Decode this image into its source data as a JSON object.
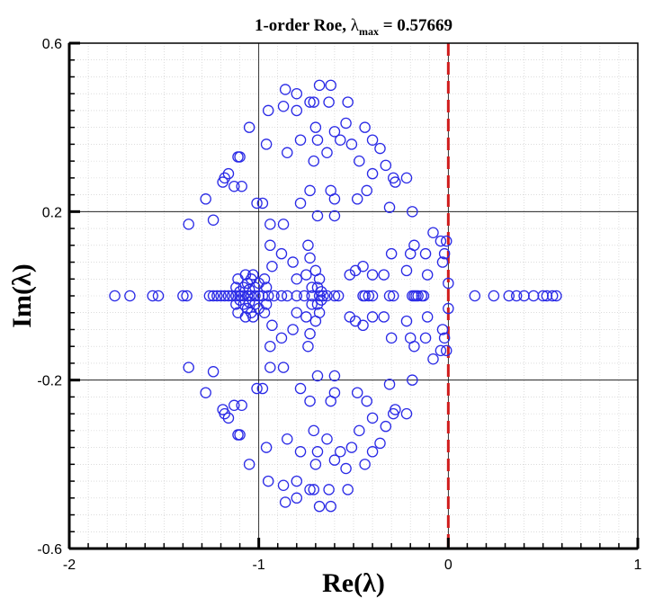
{
  "chart_data": {
    "type": "scatter",
    "title": {
      "prefix": "1-order Roe,  ",
      "symbol": "λ",
      "subscript": "max",
      "suffix": " = 0.57669"
    },
    "xlabel": "Re(λ)",
    "ylabel": "Im(λ)",
    "xlim": [
      -2,
      1
    ],
    "ylim": [
      -0.6,
      0.6
    ],
    "x_ticks": [
      {
        "value": -2,
        "label": "-2"
      },
      {
        "value": -1,
        "label": "-1"
      },
      {
        "value": 0,
        "label": "0"
      },
      {
        "value": 1,
        "label": "1"
      }
    ],
    "y_ticks": [
      {
        "value": -0.6,
        "label": "-0.6"
      },
      {
        "value": -0.2,
        "label": "-0.2"
      },
      {
        "value": 0.2,
        "label": "0.2"
      },
      {
        "value": 0.6,
        "label": "0.6"
      }
    ],
    "grid": true,
    "reference_line": {
      "x": 0,
      "color": "#d01c1c",
      "style": "dashed"
    },
    "marker": {
      "shape": "circle",
      "color": "#2a2ae6",
      "fill": "none"
    },
    "points": [
      [
        -1.76,
        0
      ],
      [
        -1.68,
        0
      ],
      [
        -1.56,
        0
      ],
      [
        -1.53,
        0
      ],
      [
        -1.4,
        0
      ],
      [
        -1.38,
        0
      ],
      [
        -1.26,
        0
      ],
      [
        -1.24,
        0
      ],
      [
        -1.22,
        0
      ],
      [
        -1.2,
        0
      ],
      [
        -1.18,
        0
      ],
      [
        -1.16,
        0
      ],
      [
        -1.14,
        0
      ],
      [
        -1.12,
        0
      ],
      [
        -1.1,
        0
      ],
      [
        -1.08,
        0
      ],
      [
        -1.06,
        0
      ],
      [
        -1.04,
        0
      ],
      [
        -1.02,
        0
      ],
      [
        -1.0,
        0
      ],
      [
        -0.98,
        0
      ],
      [
        -0.95,
        0
      ],
      [
        -1.1,
        0.01
      ],
      [
        -1.1,
        -0.01
      ],
      [
        -1.08,
        0.02
      ],
      [
        -1.08,
        -0.02
      ],
      [
        -1.06,
        0.03
      ],
      [
        -1.06,
        -0.03
      ],
      [
        -1.04,
        0.04
      ],
      [
        -1.04,
        -0.04
      ],
      [
        -1.12,
        0.02
      ],
      [
        -1.12,
        -0.02
      ],
      [
        -1.05,
        0.015
      ],
      [
        -1.05,
        -0.015
      ],
      [
        -1.02,
        0.02
      ],
      [
        -1.02,
        -0.02
      ],
      [
        -1.0,
        0.03
      ],
      [
        -1.0,
        -0.03
      ],
      [
        -1.03,
        0.05
      ],
      [
        -1.03,
        -0.05
      ],
      [
        -1.07,
        0.05
      ],
      [
        -1.07,
        -0.05
      ],
      [
        -1.11,
        0.04
      ],
      [
        -1.11,
        -0.04
      ],
      [
        -0.8,
        0
      ],
      [
        -0.76,
        0
      ],
      [
        -0.72,
        0
      ],
      [
        -0.68,
        0
      ],
      [
        -0.66,
        0
      ],
      [
        -0.64,
        0
      ],
      [
        -0.6,
        0
      ],
      [
        -0.58,
        0
      ],
      [
        -0.45,
        0
      ],
      [
        -0.44,
        0
      ],
      [
        -0.42,
        0
      ],
      [
        -0.4,
        0
      ],
      [
        -0.31,
        0
      ],
      [
        -0.29,
        0
      ],
      [
        -0.19,
        0
      ],
      [
        -0.18,
        0
      ],
      [
        -0.17,
        0
      ],
      [
        -0.16,
        0
      ],
      [
        -0.14,
        0
      ],
      [
        -0.13,
        0
      ],
      [
        0.14,
        0
      ],
      [
        0.24,
        0
      ],
      [
        0.32,
        0
      ],
      [
        0.36,
        0
      ],
      [
        0.4,
        0
      ],
      [
        0.45,
        0
      ],
      [
        0.5,
        0
      ],
      [
        0.52,
        0
      ],
      [
        0.55,
        0
      ],
      [
        0.57,
        0
      ],
      [
        -0.85,
        0
      ],
      [
        -0.88,
        0
      ],
      [
        -0.92,
        0
      ],
      [
        0.0,
        0.03
      ],
      [
        0.0,
        -0.03
      ],
      [
        -0.8,
        0.04
      ],
      [
        -0.8,
        -0.04
      ],
      [
        -0.75,
        0.05
      ],
      [
        -0.75,
        -0.05
      ],
      [
        -0.72,
        0.02
      ],
      [
        -0.72,
        -0.02
      ],
      [
        -0.69,
        0.02
      ],
      [
        -0.69,
        -0.02
      ],
      [
        -0.67,
        0.01
      ],
      [
        -0.67,
        -0.01
      ],
      [
        -0.82,
        0.08
      ],
      [
        -0.82,
        -0.08
      ],
      [
        -0.88,
        0.1
      ],
      [
        -0.88,
        -0.1
      ],
      [
        -0.94,
        0.12
      ],
      [
        -0.94,
        -0.12
      ],
      [
        -0.97,
        0.04
      ],
      [
        -0.97,
        -0.04
      ],
      [
        -0.93,
        0.07
      ],
      [
        -0.93,
        -0.07
      ],
      [
        -0.96,
        0.02
      ],
      [
        -0.96,
        -0.02
      ],
      [
        -0.7,
        0.06
      ],
      [
        -0.7,
        -0.06
      ],
      [
        -0.73,
        0.09
      ],
      [
        -0.73,
        -0.09
      ],
      [
        -0.74,
        0.12
      ],
      [
        -0.74,
        -0.12
      ],
      [
        -0.68,
        0.04
      ],
      [
        -0.68,
        -0.04
      ],
      [
        -0.52,
        0.05
      ],
      [
        -0.52,
        -0.05
      ],
      [
        -0.49,
        0.06
      ],
      [
        -0.49,
        -0.06
      ],
      [
        -0.45,
        0.07
      ],
      [
        -0.45,
        -0.07
      ],
      [
        -0.4,
        0.05
      ],
      [
        -0.4,
        -0.05
      ],
      [
        -0.34,
        0.05
      ],
      [
        -0.34,
        -0.05
      ],
      [
        -0.3,
        0.1
      ],
      [
        -0.3,
        -0.1
      ],
      [
        -0.22,
        0.06
      ],
      [
        -0.22,
        -0.06
      ],
      [
        -0.2,
        0.1
      ],
      [
        -0.2,
        -0.1
      ],
      [
        -0.18,
        0.12
      ],
      [
        -0.18,
        -0.12
      ],
      [
        -0.11,
        0.05
      ],
      [
        -0.11,
        -0.05
      ],
      [
        -0.12,
        0.1
      ],
      [
        -0.12,
        -0.1
      ],
      [
        -0.02,
        0.1
      ],
      [
        -0.02,
        -0.1
      ],
      [
        -0.03,
        0.08
      ],
      [
        -0.03,
        -0.08
      ],
      [
        -0.04,
        0.13
      ],
      [
        -0.04,
        -0.13
      ],
      [
        -0.01,
        0.13
      ],
      [
        -0.01,
        -0.13
      ],
      [
        -1.37,
        0.17
      ],
      [
        -1.37,
        -0.17
      ],
      [
        -1.24,
        0.18
      ],
      [
        -1.24,
        -0.18
      ],
      [
        -0.94,
        0.17
      ],
      [
        -0.94,
        -0.17
      ],
      [
        -0.87,
        0.17
      ],
      [
        -0.87,
        -0.17
      ],
      [
        -0.69,
        0.19
      ],
      [
        -0.69,
        -0.19
      ],
      [
        -0.6,
        0.19
      ],
      [
        -0.6,
        -0.19
      ],
      [
        -0.78,
        0.22
      ],
      [
        -0.78,
        -0.22
      ],
      [
        -0.73,
        0.25
      ],
      [
        -0.73,
        -0.25
      ],
      [
        -0.62,
        0.25
      ],
      [
        -0.62,
        -0.25
      ],
      [
        -0.6,
        0.23
      ],
      [
        -0.6,
        -0.23
      ],
      [
        -0.48,
        0.23
      ],
      [
        -0.48,
        -0.23
      ],
      [
        -0.43,
        0.25
      ],
      [
        -0.43,
        -0.25
      ],
      [
        -0.31,
        0.21
      ],
      [
        -0.31,
        -0.21
      ],
      [
        -0.19,
        0.2
      ],
      [
        -0.19,
        -0.2
      ],
      [
        -0.08,
        0.15
      ],
      [
        -0.08,
        -0.15
      ],
      [
        -1.28,
        0.23
      ],
      [
        -1.28,
        -0.23
      ],
      [
        -1.13,
        0.26
      ],
      [
        -1.13,
        -0.26
      ],
      [
        -1.09,
        0.26
      ],
      [
        -1.09,
        -0.26
      ],
      [
        -1.01,
        0.22
      ],
      [
        -1.01,
        -0.22
      ],
      [
        -0.98,
        0.22
      ],
      [
        -0.98,
        -0.22
      ],
      [
        -1.18,
        0.28
      ],
      [
        -1.18,
        -0.28
      ],
      [
        -1.19,
        0.27
      ],
      [
        -1.19,
        -0.27
      ],
      [
        -1.16,
        0.29
      ],
      [
        -1.16,
        -0.29
      ],
      [
        -0.85,
        0.34
      ],
      [
        -0.85,
        -0.34
      ],
      [
        -0.78,
        0.37
      ],
      [
        -0.78,
        -0.37
      ],
      [
        -0.64,
        0.34
      ],
      [
        -0.64,
        -0.34
      ],
      [
        -0.71,
        0.32
      ],
      [
        -0.71,
        -0.32
      ],
      [
        -0.57,
        0.37
      ],
      [
        -0.57,
        -0.37
      ],
      [
        -0.51,
        0.36
      ],
      [
        -0.51,
        -0.36
      ],
      [
        -0.47,
        0.32
      ],
      [
        -0.47,
        -0.32
      ],
      [
        -0.4,
        0.29
      ],
      [
        -0.4,
        -0.29
      ],
      [
        -0.33,
        0.31
      ],
      [
        -0.33,
        -0.31
      ],
      [
        -0.29,
        0.28
      ],
      [
        -0.29,
        -0.28
      ],
      [
        -0.28,
        0.27
      ],
      [
        -0.28,
        -0.27
      ],
      [
        -0.22,
        0.28
      ],
      [
        -0.22,
        -0.28
      ],
      [
        -1.1,
        0.33
      ],
      [
        -1.1,
        -0.33
      ],
      [
        -1.11,
        0.33
      ],
      [
        -1.11,
        -0.33
      ],
      [
        -0.96,
        0.36
      ],
      [
        -0.96,
        -0.36
      ],
      [
        -0.7,
        0.4
      ],
      [
        -0.7,
        -0.4
      ],
      [
        -0.6,
        0.39
      ],
      [
        -0.6,
        -0.39
      ],
      [
        -0.54,
        0.41
      ],
      [
        -0.54,
        -0.41
      ],
      [
        -0.4,
        0.37
      ],
      [
        -0.4,
        -0.37
      ],
      [
        -0.36,
        0.35
      ],
      [
        -0.36,
        -0.35
      ],
      [
        -0.95,
        0.44
      ],
      [
        -0.95,
        -0.44
      ],
      [
        -0.87,
        0.45
      ],
      [
        -0.87,
        -0.45
      ],
      [
        -0.8,
        0.44
      ],
      [
        -0.8,
        -0.44
      ],
      [
        -0.73,
        0.46
      ],
      [
        -0.73,
        -0.46
      ],
      [
        -0.71,
        0.46
      ],
      [
        -0.71,
        -0.46
      ],
      [
        -0.63,
        0.46
      ],
      [
        -0.63,
        -0.46
      ],
      [
        -0.53,
        0.46
      ],
      [
        -0.53,
        -0.46
      ],
      [
        -0.44,
        0.4
      ],
      [
        -0.44,
        -0.4
      ],
      [
        -1.05,
        0.4
      ],
      [
        -1.05,
        -0.4
      ],
      [
        -0.69,
        0.37
      ],
      [
        -0.69,
        -0.37
      ],
      [
        -0.86,
        0.49
      ],
      [
        -0.86,
        -0.49
      ],
      [
        -0.8,
        0.48
      ],
      [
        -0.8,
        -0.48
      ],
      [
        -0.68,
        0.5
      ],
      [
        -0.68,
        -0.5
      ],
      [
        -0.62,
        0.5
      ],
      [
        -0.62,
        -0.5
      ]
    ]
  }
}
